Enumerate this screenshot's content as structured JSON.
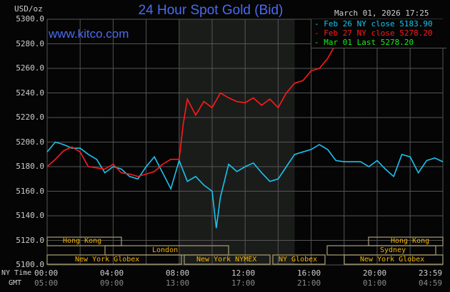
{
  "header": {
    "title": "24 Hour Spot Gold (Bid)",
    "unit": "USD/oz",
    "timestamp": "March 01, 2026 17:25",
    "watermark": "www.kitco.com"
  },
  "legend": [
    {
      "label": "Feb 26 NY close 5183.90",
      "color": "#19c3f0"
    },
    {
      "label": "Feb 27 NY close 5278.20",
      "color": "#ff1a1a"
    },
    {
      "label": "Mar 01 Last 5278.20",
      "color": "#1aef1a"
    }
  ],
  "axes": {
    "y_ticks": [
      "5300.0",
      "5280.0",
      "5260.0",
      "5240.0",
      "5220.0",
      "5200.0",
      "5180.0",
      "5160.0",
      "5140.0",
      "5120.0",
      "5100.0"
    ],
    "x_row_labels": {
      "ny": "NY Time",
      "gmt": "GMT"
    },
    "x_ny": [
      "00:00",
      "04:00",
      "08:00",
      "12:00",
      "16:00",
      "20:00",
      "23:59"
    ],
    "x_gmt": [
      "05:00",
      "09:00",
      "13:00",
      "17:00",
      "21:00",
      "01:00",
      "04:59"
    ]
  },
  "sessions": {
    "row1": [
      {
        "label": "Hong Kong"
      },
      {
        "label": "Hong Kong"
      }
    ],
    "row2": [
      {
        "label": "London"
      },
      {
        "label": "Sydney"
      }
    ],
    "row3": [
      {
        "label": "New York Globex"
      },
      {
        "label": "New York NYMEX"
      },
      {
        "label": "NY Globex"
      },
      {
        "label": "New York Globex"
      }
    ]
  },
  "chart_data": {
    "type": "line",
    "title": "24 Hour Spot Gold (Bid)",
    "xlabel": "NY Time / GMT",
    "ylabel": "USD/oz",
    "ylim": [
      5100,
      5300
    ],
    "xlim": [
      "00:00",
      "23:59"
    ],
    "grid": true,
    "shaded_region": [
      "08:00",
      "15:00"
    ],
    "legend_position": "top-right",
    "series": [
      {
        "name": "Feb 26 NY close 5183.90",
        "color": "#19c3f0",
        "x": [
          "00:00",
          "00:30",
          "01:00",
          "01:30",
          "02:00",
          "02:30",
          "03:00",
          "03:30",
          "04:00",
          "04:30",
          "05:00",
          "05:30",
          "06:00",
          "06:30",
          "07:00",
          "07:30",
          "08:00",
          "08:30",
          "09:00",
          "09:30",
          "10:00",
          "10:15",
          "10:30",
          "11:00",
          "11:30",
          "12:00",
          "12:30",
          "13:00",
          "13:30",
          "14:00",
          "14:30",
          "15:00",
          "15:30",
          "16:00",
          "16:30",
          "17:00",
          "17:30",
          "18:00",
          "18:30",
          "19:00",
          "19:30",
          "20:00",
          "20:30",
          "21:00",
          "21:30",
          "22:00",
          "22:30",
          "23:00",
          "23:30",
          "23:59"
        ],
        "values": [
          5192,
          5200,
          5198,
          5195,
          5195,
          5190,
          5186,
          5175,
          5180,
          5178,
          5172,
          5170,
          5180,
          5188,
          5175,
          5162,
          5185,
          5168,
          5172,
          5165,
          5160,
          5130,
          5155,
          5182,
          5176,
          5180,
          5183,
          5175,
          5168,
          5170,
          5180,
          5190,
          5192,
          5194,
          5198,
          5194,
          5185,
          5184,
          5184,
          5184,
          5180,
          5185,
          5178,
          5172,
          5190,
          5188,
          5175,
          5185,
          5187,
          5184
        ]
      },
      {
        "name": "Feb 27 NY close 5278.20",
        "color": "#ff1a1a",
        "x": [
          "00:00",
          "00:30",
          "01:00",
          "01:30",
          "02:00",
          "02:30",
          "03:00",
          "03:30",
          "04:00",
          "04:30",
          "05:00",
          "05:30",
          "06:00",
          "06:30",
          "07:00",
          "07:30",
          "08:00",
          "08:15",
          "08:30",
          "09:00",
          "09:30",
          "10:00",
          "10:30",
          "11:00",
          "11:30",
          "12:00",
          "12:30",
          "13:00",
          "13:30",
          "14:00",
          "14:30",
          "15:00",
          "15:30",
          "16:00",
          "16:30",
          "17:00",
          "17:25"
        ],
        "values": [
          5180,
          5186,
          5193,
          5196,
          5192,
          5180,
          5179,
          5178,
          5182,
          5175,
          5174,
          5172,
          5174,
          5176,
          5182,
          5186,
          5186,
          5215,
          5235,
          5222,
          5233,
          5228,
          5240,
          5236,
          5233,
          5232,
          5236,
          5230,
          5235,
          5228,
          5240,
          5248,
          5250,
          5258,
          5260,
          5268,
          5278
        ]
      }
    ]
  }
}
